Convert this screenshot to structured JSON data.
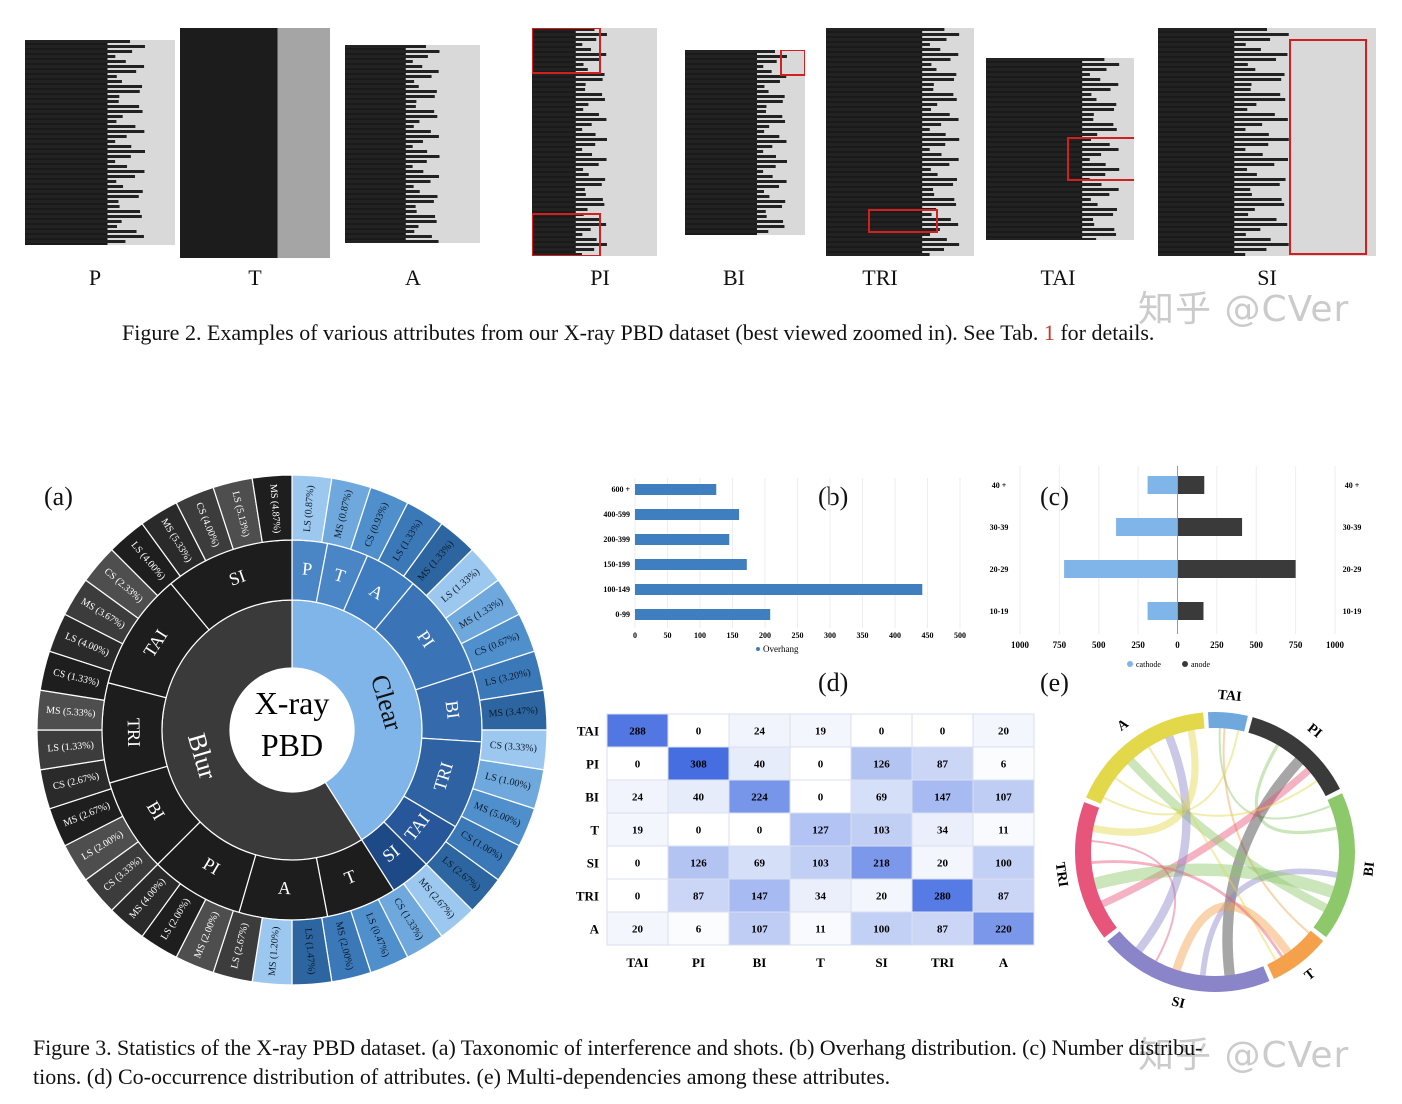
{
  "figure2": {
    "attributes": [
      "P",
      "T",
      "A",
      "PI",
      "BI",
      "TRI",
      "TAI",
      "SI"
    ],
    "caption_parts": {
      "pre": "Figure 2. Examples of various attributes from our X-ray PBD dataset (best viewed zoomed in). See Tab. ",
      "ref": "1",
      "post": " for details."
    }
  },
  "watermark": "知乎 @CVer",
  "figure3": {
    "panel_labels": {
      "a": "(a)",
      "b": "(b)",
      "c": "(c)",
      "d": "(d)",
      "e": "(e)"
    },
    "caption_line1": "Figure 3. Statistics of the X-ray PBD dataset. (a) Taxonomic of interference and shots. (b) Overhang distribution. (c) Number distribu-",
    "caption_line2": "tions. (d) Co-occurrence distribution of attributes. (e) Multi-dependencies among these attributes.",
    "sunburst_center": [
      "X-ray",
      "PBD"
    ],
    "sunburst_inner": [
      "Clear",
      "Blur"
    ],
    "sunburst_middle": [
      "P",
      "T",
      "A",
      "PI",
      "BI",
      "TRI",
      "TAI",
      "SI",
      "T",
      "A",
      "PI",
      "BI",
      "TRI",
      "TAI",
      "SI"
    ],
    "sunburst_outer": [
      "LS (0.87%)",
      "MS (0.87%)",
      "CS (0.93%)",
      "LS (1.33%)",
      "MS (1.33%)",
      "LS (1.33%)",
      "MS (1.33%)",
      "CS (0.67%)",
      "LS (3.20%)",
      "MS (3.47%)",
      "CS (3.33%)",
      "LS (1.00%)",
      "MS (5.00%)",
      "CS (1.00%)",
      "LS (2.67%)",
      "MS (2.67%)",
      "CS (1.33%)",
      "LS (0.47%)",
      "MS (2.00%)",
      "LS (1.47%)",
      "MS (1.20%)",
      "LS (2.67%)",
      "MS (2.00%)",
      "LS (2.00%)",
      "MS (4.00%)",
      "CS (3.33%)",
      "LS (2.00%)",
      "MS (2.67%)",
      "CS (2.67%)",
      "LS (1.33%)",
      "MS (5.33%)",
      "CS (1.33%)",
      "LS (4.00%)",
      "MS (3.67%)",
      "CS (2.33%)",
      "LS (4.00%)",
      "MS (5.33%)",
      "CS (4.00%)",
      "LS (5.13%)",
      "MS (4.87%)"
    ]
  },
  "chart_data": [
    {
      "type": "bar",
      "panel": "(b)",
      "orientation": "horizontal",
      "categories": [
        "0-99",
        "100-149",
        "150-199",
        "200-399",
        "400-599",
        "600 +"
      ],
      "series": [
        {
          "name": "Overhang",
          "values": [
            208,
            442,
            172,
            145,
            160,
            125
          ]
        }
      ],
      "xticks": [
        "0",
        "50",
        "100",
        "150",
        "200",
        "250",
        "300",
        "350",
        "400",
        "450",
        "500"
      ],
      "xlim": [
        0,
        500
      ],
      "legend": "bottom"
    },
    {
      "type": "bar",
      "panel": "(c)",
      "orientation": "horizontal-diverging",
      "categories": [
        "10-19",
        "20-29",
        "30-39",
        "40 +"
      ],
      "series": [
        {
          "name": "cathode",
          "values": [
            190,
            720,
            390,
            190
          ]
        },
        {
          "name": "anode",
          "values": [
            165,
            750,
            410,
            170
          ]
        }
      ],
      "xticks": [
        "1000",
        "750",
        "500",
        "250",
        "0",
        "250",
        "500",
        "750",
        "1000"
      ],
      "xlim": [
        -1000,
        1000
      ],
      "legend": "bottom"
    },
    {
      "type": "heatmap",
      "panel": "(d)",
      "rows": [
        "TAI",
        "PI",
        "BI",
        "T",
        "SI",
        "TRI",
        "A"
      ],
      "cols": [
        "TAI",
        "PI",
        "BI",
        "T",
        "SI",
        "TRI",
        "A"
      ],
      "values": [
        [
          288,
          0,
          24,
          19,
          0,
          0,
          20
        ],
        [
          0,
          308,
          40,
          0,
          126,
          87,
          6
        ],
        [
          24,
          40,
          224,
          0,
          69,
          147,
          107
        ],
        [
          19,
          0,
          0,
          127,
          103,
          34,
          11
        ],
        [
          0,
          126,
          69,
          103,
          218,
          20,
          100
        ],
        [
          0,
          87,
          147,
          34,
          20,
          280,
          87
        ],
        [
          20,
          6,
          107,
          11,
          100,
          87,
          220
        ]
      ]
    },
    {
      "type": "chord",
      "panel": "(e)",
      "nodes": [
        "TAI",
        "PI",
        "BI",
        "T",
        "SI",
        "TRI",
        "A"
      ],
      "colors": [
        "#6fa8dc",
        "#3a3a3a",
        "#8dc86b",
        "#f5a04a",
        "#8a84c8",
        "#e8557a",
        "#e3d74a"
      ]
    }
  ]
}
